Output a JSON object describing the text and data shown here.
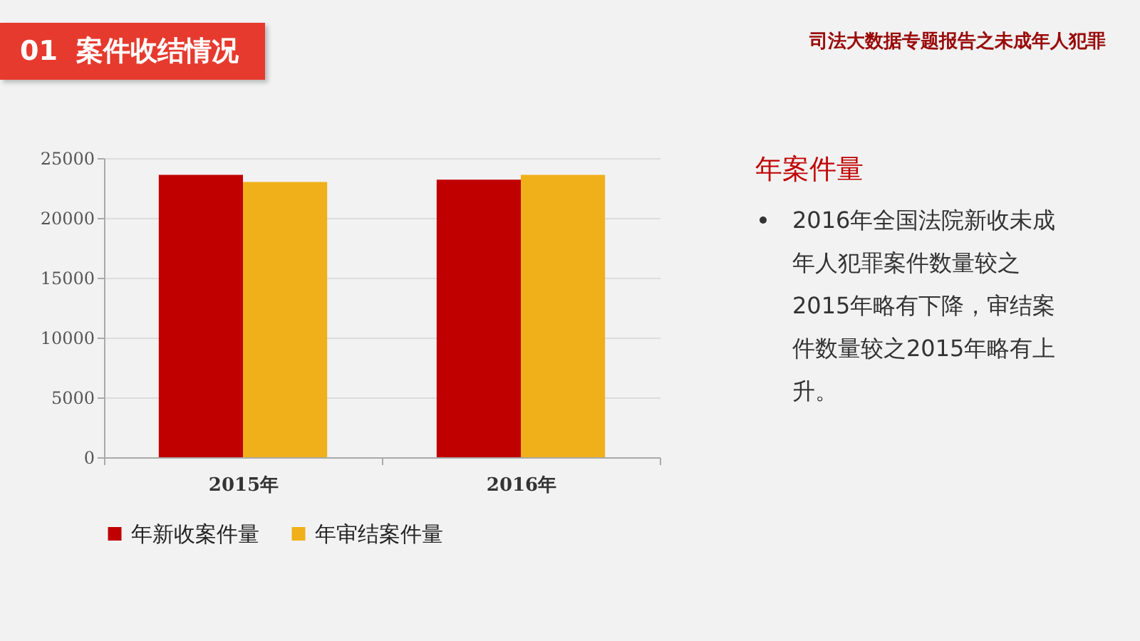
{
  "chart_data": {
    "type": "bar",
    "title": "01  案件收结情况",
    "subtitle": "司法大数据专题报告之未成年人犯罪",
    "categories": [
      "2015年",
      "2016年"
    ],
    "series": [
      {
        "name": "年新收案件量",
        "color": "#c00000",
        "values": [
          23600,
          23200
        ]
      },
      {
        "name": "年审结案件量",
        "color": "#f0b01a",
        "values": [
          23000,
          23600
        ]
      }
    ],
    "ylim": [
      0,
      25000
    ],
    "yticks": [
      0,
      5000,
      10000,
      15000,
      20000,
      25000
    ],
    "grid": "y",
    "legend": "bottom",
    "annotations": [
      "年案件量",
      "2016年全国法院新收未成年人犯罪案件数量较之2015年略有下降，审结案件数量较之2015年略有上升。"
    ]
  }
}
